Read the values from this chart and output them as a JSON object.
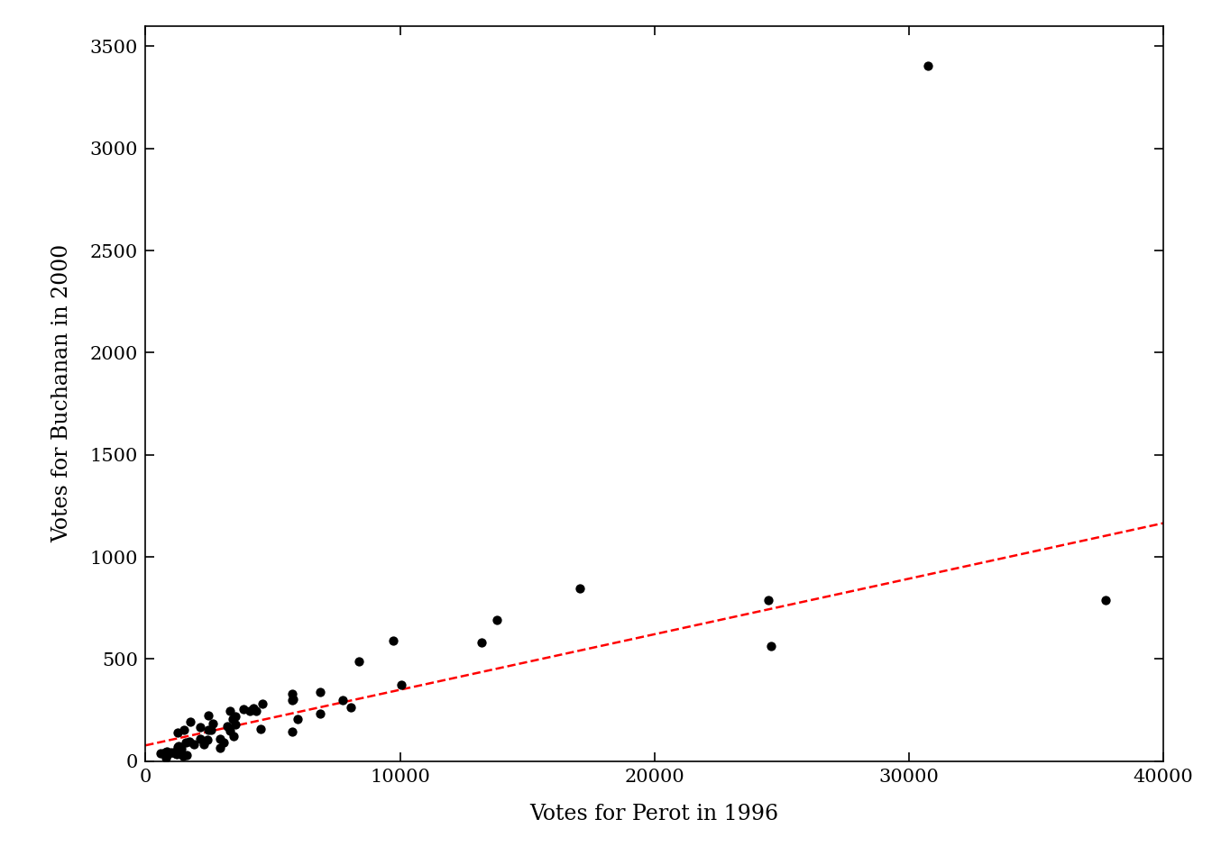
{
  "perot": [
    8072,
    1309,
    6860,
    2149,
    4339,
    2927,
    5765,
    1920,
    1630,
    13200,
    1482,
    1224,
    3321,
    2166,
    763,
    1271,
    1748,
    1585,
    1270,
    852,
    2642,
    3468,
    4522,
    7738,
    5965,
    3427,
    868,
    2281,
    4582,
    3845,
    4254,
    2422,
    17060,
    5765,
    578,
    2462,
    3546,
    2573,
    9743,
    3060,
    6862,
    1398,
    1717,
    3526,
    796,
    24565,
    13816,
    10060,
    30739,
    2927,
    24471,
    5765,
    3308,
    1512,
    1030,
    2462,
    4085,
    1171,
    1300,
    793,
    1279,
    1235,
    5791,
    8377,
    37724,
    3200
  ],
  "buchanan": [
    262,
    73,
    234,
    108,
    248,
    65,
    146,
    84,
    29,
    582,
    24,
    35,
    248,
    166,
    45,
    70,
    195,
    93,
    53,
    48,
    184,
    122,
    159,
    301,
    205,
    208,
    36,
    85,
    282,
    253,
    259,
    107,
    845,
    331,
    38,
    152,
    180,
    153,
    592,
    90,
    340,
    62,
    94,
    221,
    28,
    563,
    690,
    373,
    3407,
    109,
    789,
    301,
    150,
    155,
    44,
    222,
    248,
    38,
    63,
    18,
    139,
    54,
    302,
    491,
    791,
    172
  ],
  "xlabel": "Votes for Perot in 1996",
  "ylabel": "Votes for Buchanan in 2000",
  "xlim": [
    0,
    40000
  ],
  "ylim": [
    0,
    3600
  ],
  "background_color": "#ffffff",
  "point_color": "#000000",
  "point_size": 55,
  "line_color": "#ff0000",
  "line_style": "--",
  "line_width": 1.8,
  "xticks": [
    0,
    10000,
    20000,
    30000,
    40000
  ],
  "yticks": [
    0,
    500,
    1000,
    1500,
    2000,
    2500,
    3000,
    3500
  ],
  "label_fontsize": 17,
  "tick_fontsize": 15,
  "reg_intercept": 45.8,
  "reg_slope": 0.03565
}
